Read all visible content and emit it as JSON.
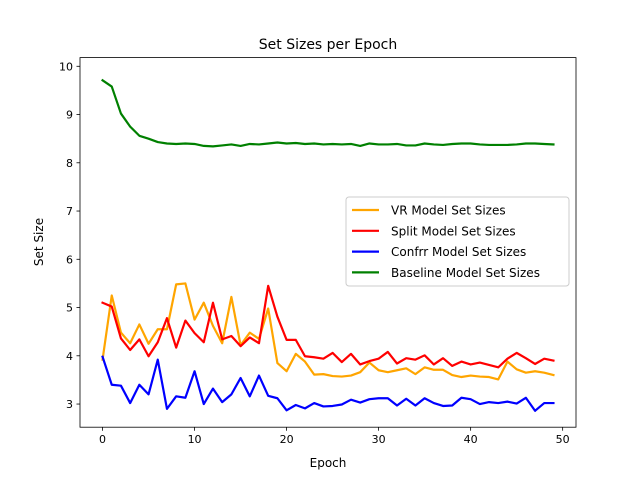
{
  "chart_data": {
    "type": "line",
    "title": "Set Sizes per Epoch",
    "xlabel": "Epoch",
    "ylabel": "Set Size",
    "xlim": [
      -2.45,
      51.45
    ],
    "ylim": [
      2.52,
      10.18
    ],
    "xticks": [
      0,
      10,
      20,
      30,
      40,
      50
    ],
    "yticks": [
      3,
      4,
      5,
      6,
      7,
      8,
      9,
      10
    ],
    "grid": false,
    "legend_position": "center-right",
    "x": [
      0,
      1,
      2,
      3,
      4,
      5,
      6,
      7,
      8,
      9,
      10,
      11,
      12,
      13,
      14,
      15,
      16,
      17,
      18,
      19,
      20,
      21,
      22,
      23,
      24,
      25,
      26,
      27,
      28,
      29,
      30,
      31,
      32,
      33,
      34,
      35,
      36,
      37,
      38,
      39,
      40,
      41,
      42,
      43,
      44,
      45,
      46,
      47,
      48,
      49
    ],
    "series": [
      {
        "name": "VR Model Set Sizes",
        "color": "#ffa500",
        "values": [
          3.92,
          5.25,
          4.48,
          4.26,
          4.65,
          4.25,
          4.55,
          4.55,
          5.48,
          5.5,
          4.75,
          5.1,
          4.62,
          4.26,
          5.22,
          4.22,
          4.48,
          4.35,
          4.98,
          3.85,
          3.68,
          4.04,
          3.88,
          3.61,
          3.62,
          3.58,
          3.57,
          3.59,
          3.66,
          3.86,
          3.7,
          3.66,
          3.7,
          3.74,
          3.62,
          3.76,
          3.71,
          3.71,
          3.6,
          3.56,
          3.59,
          3.57,
          3.56,
          3.51,
          3.88,
          3.72,
          3.65,
          3.68,
          3.65,
          3.6
        ]
      },
      {
        "name": "Split Model Set Sizes",
        "color": "#ff0000",
        "values": [
          5.1,
          5.02,
          4.36,
          4.12,
          4.34,
          3.99,
          4.28,
          4.78,
          4.17,
          4.73,
          4.47,
          4.28,
          5.1,
          4.34,
          4.41,
          4.2,
          4.38,
          4.26,
          5.45,
          4.81,
          4.33,
          4.33,
          3.99,
          3.97,
          3.94,
          4.06,
          3.87,
          4.04,
          3.82,
          3.89,
          3.94,
          4.08,
          3.84,
          3.95,
          3.92,
          4.01,
          3.82,
          3.95,
          3.79,
          3.88,
          3.82,
          3.86,
          3.81,
          3.76,
          3.94,
          4.06,
          3.95,
          3.83,
          3.94,
          3.9
        ]
      },
      {
        "name": "Confrr Model Set Sizes",
        "color": "#0000ff",
        "values": [
          3.98,
          3.4,
          3.38,
          3.02,
          3.4,
          3.2,
          3.92,
          2.9,
          3.16,
          3.13,
          3.68,
          3.0,
          3.32,
          3.04,
          3.2,
          3.54,
          3.16,
          3.59,
          3.17,
          3.12,
          2.87,
          2.98,
          2.91,
          3.02,
          2.95,
          2.96,
          2.99,
          3.09,
          3.03,
          3.1,
          3.12,
          3.12,
          2.97,
          3.11,
          2.97,
          3.12,
          3.02,
          2.96,
          2.97,
          3.13,
          3.1,
          3.0,
          3.04,
          3.02,
          3.05,
          3.01,
          3.13,
          2.86,
          3.02,
          3.02
        ]
      },
      {
        "name": "Baseline Model Set Sizes",
        "color": "#008000",
        "values": [
          9.71,
          9.58,
          9.02,
          8.75,
          8.56,
          8.5,
          8.43,
          8.4,
          8.39,
          8.4,
          8.39,
          8.35,
          8.34,
          8.36,
          8.38,
          8.35,
          8.39,
          8.38,
          8.4,
          8.42,
          8.4,
          8.41,
          8.39,
          8.4,
          8.38,
          8.39,
          8.38,
          8.39,
          8.35,
          8.4,
          8.38,
          8.38,
          8.39,
          8.36,
          8.36,
          8.4,
          8.38,
          8.37,
          8.39,
          8.4,
          8.4,
          8.38,
          8.37,
          8.37,
          8.37,
          8.38,
          8.4,
          8.4,
          8.39,
          8.38
        ]
      }
    ]
  }
}
